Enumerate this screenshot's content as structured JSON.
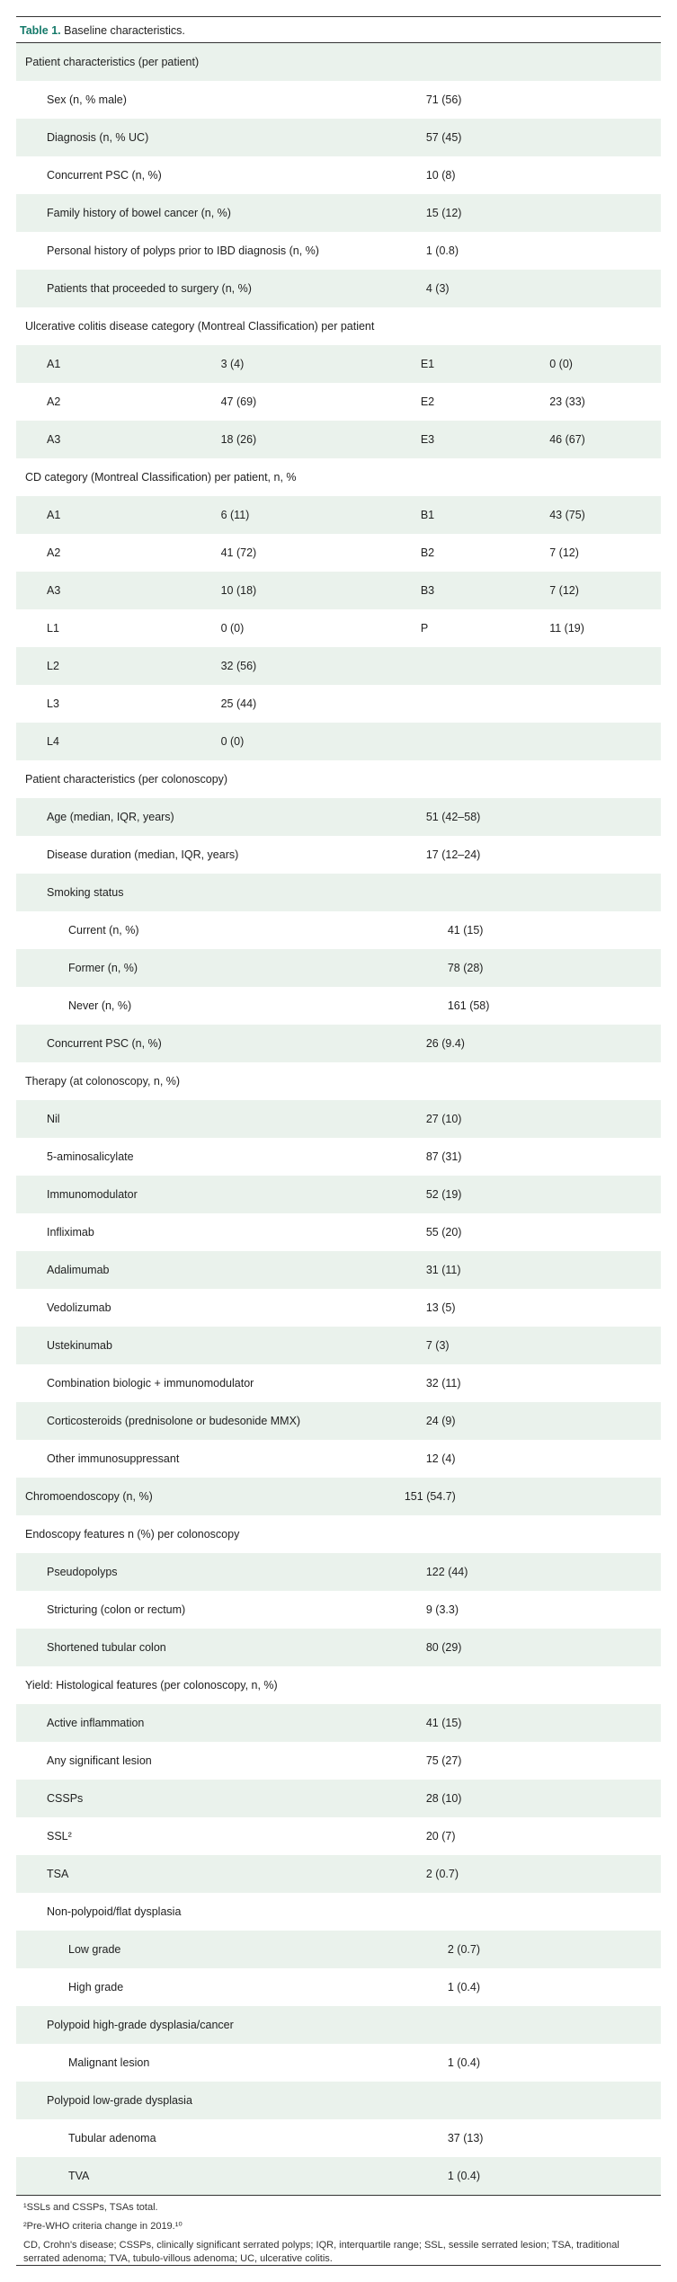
{
  "table": {
    "title_label": "Table 1.",
    "title_text": "Baseline characteristics.",
    "colors": {
      "accent": "#157a6a",
      "row_alt_bg": "#eaf2ec",
      "border": "#333333",
      "text": "#222222",
      "bg": "#ffffff"
    },
    "rows": [
      {
        "type": "section",
        "label": "Patient characteristics (per patient)"
      },
      {
        "type": "kv",
        "indent": 1,
        "label": "Sex (n, % male)",
        "value": "71 (56)"
      },
      {
        "type": "kv",
        "indent": 1,
        "label": "Diagnosis (n, % UC)",
        "value": "57 (45)"
      },
      {
        "type": "kv",
        "indent": 1,
        "label": "Concurrent PSC (n, %)",
        "value": "10 (8)"
      },
      {
        "type": "kv",
        "indent": 1,
        "label": "Family history of bowel cancer (n, %)",
        "value": "15 (12)"
      },
      {
        "type": "kv",
        "indent": 1,
        "label": "Personal history of polyps prior to IBD diagnosis (n, %)",
        "value": "1 (0.8)"
      },
      {
        "type": "kv",
        "indent": 1,
        "label": "Patients that proceeded to surgery (n, %)",
        "value": "4 (3)"
      },
      {
        "type": "section",
        "label": "Ulcerative colitis disease category (Montreal Classification) per patient"
      },
      {
        "type": "q4",
        "a": "A1",
        "b": "3 (4)",
        "c": "E1",
        "d": "0 (0)"
      },
      {
        "type": "q4",
        "a": "A2",
        "b": "47 (69)",
        "c": "E2",
        "d": "23 (33)"
      },
      {
        "type": "q4",
        "a": "A3",
        "b": "18 (26)",
        "c": "E3",
        "d": "46 (67)"
      },
      {
        "type": "section",
        "label": "CD category (Montreal Classification) per patient, n, %"
      },
      {
        "type": "q4",
        "a": "A1",
        "b": "6 (11)",
        "c": "B1",
        "d": "43 (75)"
      },
      {
        "type": "q4",
        "a": "A2",
        "b": "41 (72)",
        "c": "B2",
        "d": "7 (12)"
      },
      {
        "type": "q4",
        "a": "A3",
        "b": "10 (18)",
        "c": "B3",
        "d": "7 (12)"
      },
      {
        "type": "q4",
        "a": "L1",
        "b": "0 (0)",
        "c": "P",
        "d": "11 (19)"
      },
      {
        "type": "q4",
        "a": "L2",
        "b": "32 (56)",
        "c": "",
        "d": ""
      },
      {
        "type": "q4",
        "a": "L3",
        "b": "25 (44)",
        "c": "",
        "d": ""
      },
      {
        "type": "q4",
        "a": "L4",
        "b": "0 (0)",
        "c": "",
        "d": ""
      },
      {
        "type": "section",
        "label": "Patient characteristics (per colonoscopy)"
      },
      {
        "type": "kv",
        "indent": 1,
        "label": "Age (median, IQR, years)",
        "value": "51 (42–58)"
      },
      {
        "type": "kv",
        "indent": 1,
        "label": "Disease duration (median, IQR, years)",
        "value": "17 (12–24)"
      },
      {
        "type": "kv",
        "indent": 1,
        "label": "Smoking status",
        "value": ""
      },
      {
        "type": "kv",
        "indent": 2,
        "label": "Current (n, %)",
        "value": "41 (15)"
      },
      {
        "type": "kv",
        "indent": 2,
        "label": "Former (n, %)",
        "value": "78 (28)"
      },
      {
        "type": "kv",
        "indent": 2,
        "label": "Never (n, %)",
        "value": "161 (58)"
      },
      {
        "type": "kv",
        "indent": 1,
        "label": "Concurrent PSC (n, %)",
        "value": "26 (9.4)"
      },
      {
        "type": "section",
        "label": "Therapy (at colonoscopy, n, %)"
      },
      {
        "type": "kv",
        "indent": 1,
        "label": "Nil",
        "value": "27 (10)"
      },
      {
        "type": "kv",
        "indent": 1,
        "label": "5-aminosalicylate",
        "value": "87 (31)"
      },
      {
        "type": "kv",
        "indent": 1,
        "label": "Immunomodulator",
        "value": "52 (19)"
      },
      {
        "type": "kv",
        "indent": 1,
        "label": "Infliximab",
        "value": "55 (20)"
      },
      {
        "type": "kv",
        "indent": 1,
        "label": "Adalimumab",
        "value": "31 (11)"
      },
      {
        "type": "kv",
        "indent": 1,
        "label": "Vedolizumab",
        "value": "13 (5)"
      },
      {
        "type": "kv",
        "indent": 1,
        "label": "Ustekinumab",
        "value": "7 (3)"
      },
      {
        "type": "kv",
        "indent": 1,
        "label": "Combination biologic + immunomodulator",
        "value": "32 (11)"
      },
      {
        "type": "kv",
        "indent": 1,
        "label": "Corticosteroids (prednisolone or budesonide MMX)",
        "value": "24 (9)"
      },
      {
        "type": "kv",
        "indent": 1,
        "label": "Other immunosuppressant",
        "value": "12 (4)"
      },
      {
        "type": "kv",
        "indent": 0,
        "label": "Chromoendoscopy (n, %)",
        "value": "151 (54.7)"
      },
      {
        "type": "section",
        "label": "Endoscopy features n (%) per colonoscopy"
      },
      {
        "type": "kv",
        "indent": 1,
        "label": "Pseudopolyps",
        "value": "122 (44)"
      },
      {
        "type": "kv",
        "indent": 1,
        "label": "Stricturing (colon or rectum)",
        "value": "9 (3.3)"
      },
      {
        "type": "kv",
        "indent": 1,
        "label": "Shortened tubular colon",
        "value": "80 (29)"
      },
      {
        "type": "section",
        "label": "Yield: Histological features (per colonoscopy, n, %)"
      },
      {
        "type": "kv",
        "indent": 1,
        "label": "Active inflammation",
        "value": "41 (15)"
      },
      {
        "type": "kv",
        "indent": 1,
        "label": "Any significant lesion",
        "value": "75 (27)"
      },
      {
        "type": "kv",
        "indent": 1,
        "label": "CSSPs",
        "value": "28 (10)"
      },
      {
        "type": "kv",
        "indent": 1,
        "label": "SSL²",
        "value": "20 (7)"
      },
      {
        "type": "kv",
        "indent": 1,
        "label": "TSA",
        "value": "2 (0.7)"
      },
      {
        "type": "kv",
        "indent": 1,
        "label": "Non-polypoid/flat dysplasia",
        "value": ""
      },
      {
        "type": "kv",
        "indent": 2,
        "label": "Low grade",
        "value": "2 (0.7)"
      },
      {
        "type": "kv",
        "indent": 2,
        "label": "High grade",
        "value": "1 (0.4)"
      },
      {
        "type": "kv",
        "indent": 1,
        "label": "Polypoid high-grade dysplasia/cancer",
        "value": ""
      },
      {
        "type": "kv",
        "indent": 2,
        "label": "Malignant lesion",
        "value": "1 (0.4)"
      },
      {
        "type": "kv",
        "indent": 1,
        "label": "Polypoid low-grade dysplasia",
        "value": ""
      },
      {
        "type": "kv",
        "indent": 2,
        "label": "Tubular adenoma",
        "value": "37 (13)"
      },
      {
        "type": "kv",
        "indent": 2,
        "label": "TVA",
        "value": "1 (0.4)"
      }
    ],
    "footnotes": [
      "¹SSLs and CSSPs, TSAs total.",
      "²Pre-WHO criteria change in 2019.¹⁰",
      "CD, Crohn's disease; CSSPs, clinically significant serrated polyps; IQR, interquartile range; SSL, sessile serrated lesion; TSA, traditional serrated adenoma; TVA, tubulo-villous adenoma; UC, ulcerative colitis."
    ]
  }
}
